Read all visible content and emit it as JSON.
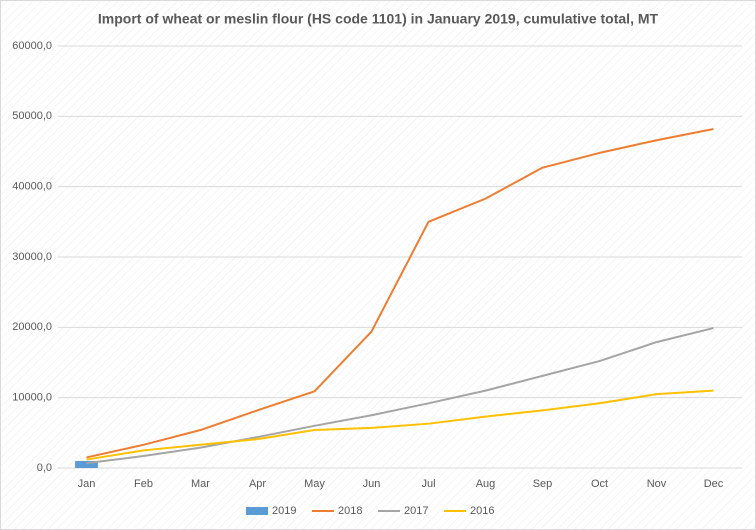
{
  "chart_data": {
    "type": "combo",
    "title": "Import of wheat or meslin flour (HS code 1101) in January 2019, cumulative total, MT",
    "categories": [
      "Jan",
      "Feb",
      "Mar",
      "Apr",
      "May",
      "Jun",
      "Jul",
      "Aug",
      "Sep",
      "Oct",
      "Nov",
      "Dec"
    ],
    "ylim": [
      0,
      60000
    ],
    "yticks": [
      {
        "value": 0,
        "label": "0,0"
      },
      {
        "value": 10000,
        "label": "10000,0"
      },
      {
        "value": 20000,
        "label": "20000,0"
      },
      {
        "value": 30000,
        "label": "30000,0"
      },
      {
        "value": 40000,
        "label": "40000,0"
      },
      {
        "value": 50000,
        "label": "50000,0"
      },
      {
        "value": 60000,
        "label": "60000,0"
      }
    ],
    "grid": true,
    "legend": "bottom",
    "series": [
      {
        "name": "2019",
        "type": "bar",
        "color": "#5b9bd5",
        "values": [
          1000,
          null,
          null,
          null,
          null,
          null,
          null,
          null,
          null,
          null,
          null,
          null
        ]
      },
      {
        "name": "2018",
        "type": "line",
        "color": "#ed7d31",
        "values": [
          1500,
          3300,
          5400,
          8200,
          10900,
          19400,
          35000,
          38300,
          42700,
          44800,
          46600,
          48200
        ]
      },
      {
        "name": "2017",
        "type": "line",
        "color": "#a5a5a5",
        "values": [
          700,
          1700,
          2900,
          4400,
          6000,
          7500,
          9200,
          11000,
          13100,
          15200,
          17900,
          19900
        ]
      },
      {
        "name": "2016",
        "type": "line",
        "color": "#ffc000",
        "values": [
          1200,
          2500,
          3300,
          4100,
          5400,
          5700,
          6300,
          7300,
          8200,
          9200,
          10500,
          11000
        ]
      }
    ]
  }
}
